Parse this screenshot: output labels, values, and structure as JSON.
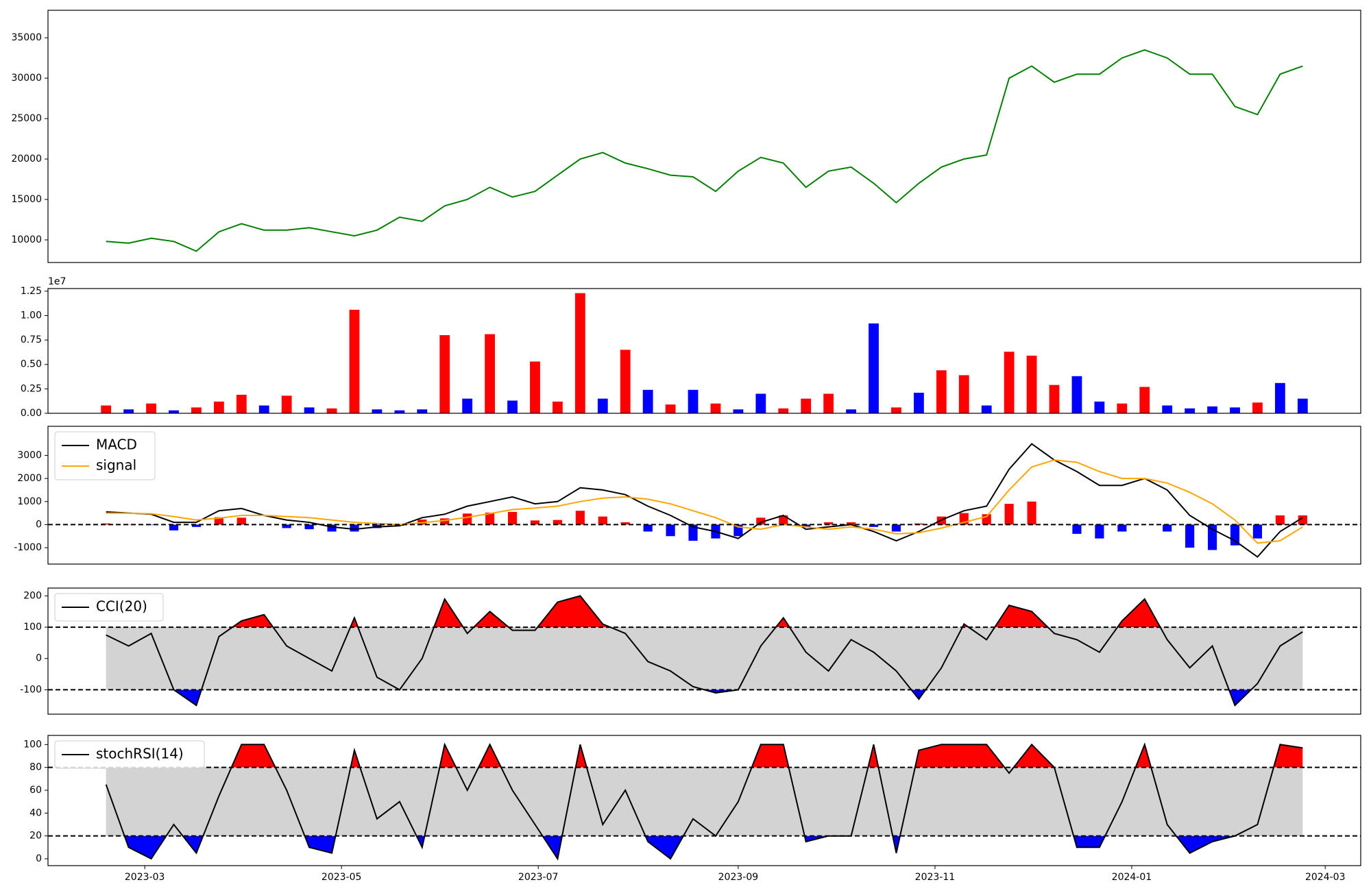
{
  "chart_data": [
    {
      "type": "line",
      "x": [
        47,
        54,
        61,
        68,
        75,
        82,
        89,
        96,
        103,
        110,
        117,
        124,
        131,
        138,
        145,
        152,
        159,
        166,
        173,
        180,
        187,
        194,
        201,
        208,
        215,
        222,
        229,
        236,
        243,
        250,
        257,
        264,
        271,
        278,
        285,
        292,
        299,
        306,
        313,
        320,
        327,
        334,
        341,
        348,
        355,
        362,
        369,
        376,
        383,
        390,
        397,
        404,
        411,
        418
      ],
      "values": [
        9800,
        9600,
        10200,
        9800,
        8600,
        11000,
        12000,
        11200,
        11200,
        11500,
        11000,
        10500,
        11200,
        12800,
        12300,
        14200,
        15000,
        16500,
        15300,
        16000,
        18000,
        20000,
        20800,
        19500,
        18800,
        18000,
        17800,
        16000,
        18500,
        20200,
        19500,
        16500,
        18500,
        19000,
        17000,
        14600,
        17000,
        19000,
        20000,
        20500,
        30000,
        31500,
        29500,
        30500,
        30500,
        32500,
        33500,
        32500,
        30500,
        30500,
        26500,
        25500,
        30500,
        31500
      ],
      "color": "#008000",
      "xlim": [
        29,
        436
      ],
      "ylim": [
        7200,
        38400
      ],
      "yticks": [
        10000,
        15000,
        20000,
        25000,
        30000,
        35000
      ]
    },
    {
      "type": "bar",
      "x": [
        47,
        54,
        61,
        68,
        75,
        82,
        89,
        96,
        103,
        110,
        117,
        124,
        131,
        138,
        145,
        152,
        159,
        166,
        173,
        180,
        187,
        194,
        201,
        208,
        215,
        222,
        229,
        236,
        243,
        250,
        257,
        264,
        271,
        278,
        285,
        292,
        299,
        306,
        313,
        320,
        327,
        334,
        341,
        348,
        355,
        362,
        369,
        376,
        383,
        390,
        397,
        404,
        411,
        418
      ],
      "values": [
        800000,
        400000,
        1000000,
        300000,
        600000,
        1200000,
        1900000,
        800000,
        1800000,
        600000,
        500000,
        10600000,
        400000,
        300000,
        400000,
        8000000,
        1500000,
        8100000,
        1300000,
        5300000,
        1200000,
        12300000,
        1500000,
        6500000,
        2400000,
        900000,
        2400000,
        1000000,
        400000,
        2000000,
        500000,
        1500000,
        2000000,
        400000,
        9200000,
        600000,
        2100000,
        4400000,
        3900000,
        800000,
        6300000,
        5900000,
        2900000,
        3800000,
        1200000,
        1000000,
        2700000,
        800000,
        500000,
        700000,
        600000,
        1100000,
        3100000,
        1500000
      ],
      "colors": [
        "red",
        "blue",
        "red",
        "blue",
        "red",
        "red",
        "red",
        "blue",
        "red",
        "blue",
        "red",
        "red",
        "blue",
        "blue",
        "blue",
        "red",
        "blue",
        "red",
        "blue",
        "red",
        "red",
        "red",
        "blue",
        "red",
        "blue",
        "red",
        "blue",
        "red",
        "blue",
        "blue",
        "red",
        "red",
        "red",
        "blue",
        "blue",
        "red",
        "blue",
        "red",
        "red",
        "blue",
        "red",
        "red",
        "red",
        "blue",
        "blue",
        "red",
        "red",
        "blue",
        "blue",
        "blue",
        "blue",
        "red",
        "blue",
        "blue"
      ],
      "xlim": [
        29,
        436
      ],
      "ylim": [
        0,
        12770000
      ],
      "y_offset_label": "1e7",
      "yticks": [
        {
          "value": 0,
          "label": "0.00"
        },
        {
          "value": 2500000,
          "label": "0.25"
        },
        {
          "value": 5000000,
          "label": "0.50"
        },
        {
          "value": 7500000,
          "label": "0.75"
        },
        {
          "value": 10000000,
          "label": "1.00"
        },
        {
          "value": 12500000,
          "label": "1.25"
        }
      ]
    },
    {
      "type": "macd",
      "x": [
        47,
        54,
        61,
        68,
        75,
        82,
        89,
        96,
        103,
        110,
        117,
        124,
        131,
        138,
        145,
        152,
        159,
        166,
        173,
        180,
        187,
        194,
        201,
        208,
        215,
        222,
        229,
        236,
        243,
        250,
        257,
        264,
        271,
        278,
        285,
        292,
        299,
        306,
        313,
        320,
        327,
        334,
        341,
        348,
        355,
        362,
        369,
        376,
        383,
        390,
        397,
        404,
        411,
        418
      ],
      "series": [
        {
          "name": "MACD",
          "color": "black",
          "values": [
            550,
            500,
            450,
            100,
            100,
            600,
            700,
            400,
            200,
            100,
            -100,
            -200,
            -100,
            -50,
            300,
            450,
            800,
            1000,
            1200,
            900,
            1000,
            1600,
            1500,
            1300,
            800,
            400,
            -100,
            -300,
            -600,
            100,
            400,
            -200,
            -100,
            0,
            -300,
            -700,
            -300,
            200,
            600,
            800,
            2400,
            3500,
            2800,
            2300,
            1700,
            1700,
            2000,
            1500,
            400,
            -200,
            -700,
            -1400,
            -300,
            300
          ]
        },
        {
          "name": "signal",
          "color": "orange",
          "values": [
            500,
            490,
            470,
            350,
            200,
            280,
            400,
            400,
            350,
            300,
            200,
            100,
            50,
            0,
            80,
            180,
            320,
            480,
            650,
            720,
            800,
            1000,
            1150,
            1200,
            1100,
            900,
            600,
            300,
            -100,
            -200,
            0,
            -100,
            -200,
            -100,
            -200,
            -400,
            -350,
            -150,
            100,
            350,
            1500,
            2500,
            2800,
            2700,
            2300,
            2000,
            2000,
            1800,
            1400,
            900,
            200,
            -800,
            -700,
            -100
          ]
        }
      ],
      "histogram": {
        "values": [
          50,
          10,
          -20,
          -250,
          -100,
          320,
          300,
          0,
          -150,
          -200,
          -300,
          -300,
          -150,
          -50,
          220,
          270,
          480,
          520,
          550,
          180,
          200,
          600,
          350,
          100,
          -300,
          -500,
          -700,
          -600,
          -500,
          300,
          400,
          -100,
          100,
          100,
          -100,
          -300,
          50,
          350,
          500,
          450,
          900,
          1000,
          0,
          -400,
          -600,
          -300,
          0,
          -300,
          -1000,
          -1100,
          -900,
          -600,
          400,
          400
        ],
        "pos_color": "red",
        "neg_color": "blue"
      },
      "thresholds": [
        0
      ],
      "legend": "upper left",
      "xlim": [
        29,
        436
      ],
      "ylim": [
        -1710,
        4260
      ],
      "yticks": [
        -1000,
        0,
        1000,
        2000,
        3000
      ]
    },
    {
      "type": "oscillator",
      "x": [
        47,
        54,
        61,
        68,
        75,
        82,
        89,
        96,
        103,
        110,
        117,
        124,
        131,
        138,
        145,
        152,
        159,
        166,
        173,
        180,
        187,
        194,
        201,
        208,
        215,
        222,
        229,
        236,
        243,
        250,
        257,
        264,
        271,
        278,
        285,
        292,
        299,
        306,
        313,
        320,
        327,
        334,
        341,
        348,
        355,
        362,
        369,
        376,
        383,
        390,
        397,
        404,
        411,
        418
      ],
      "series": [
        {
          "name": "CCI(20)",
          "color": "black",
          "values": [
            75,
            40,
            80,
            -100,
            -150,
            70,
            120,
            140,
            40,
            0,
            -40,
            130,
            -60,
            -100,
            0,
            190,
            80,
            150,
            90,
            90,
            180,
            200,
            110,
            80,
            -10,
            -40,
            -90,
            -110,
            -100,
            40,
            130,
            20,
            -40,
            60,
            20,
            -40,
            -130,
            -30,
            110,
            60,
            170,
            150,
            80,
            60,
            20,
            120,
            190,
            60,
            -30,
            40,
            -150,
            -80,
            40,
            85
          ]
        }
      ],
      "thresholds": [
        100,
        -100
      ],
      "upper_color": "red",
      "lower_color": "blue",
      "band_color": "lightgray",
      "legend": "upper left",
      "xlim": [
        29,
        436
      ],
      "ylim": [
        -178,
        225
      ],
      "yticks": [
        -100,
        0,
        100,
        200
      ]
    },
    {
      "type": "oscillator",
      "x": [
        47,
        54,
        61,
        68,
        75,
        82,
        89,
        96,
        103,
        110,
        117,
        124,
        131,
        138,
        145,
        152,
        159,
        166,
        173,
        180,
        187,
        194,
        201,
        208,
        215,
        222,
        229,
        236,
        243,
        250,
        257,
        264,
        271,
        278,
        285,
        292,
        299,
        306,
        313,
        320,
        327,
        334,
        341,
        348,
        355,
        362,
        369,
        376,
        383,
        390,
        397,
        404,
        411,
        418
      ],
      "series": [
        {
          "name": "stochRSI(14)",
          "color": "black",
          "values": [
            65,
            10,
            0,
            30,
            5,
            55,
            100,
            100,
            60,
            10,
            5,
            95,
            35,
            50,
            10,
            100,
            60,
            100,
            60,
            30,
            0,
            100,
            30,
            60,
            15,
            0,
            35,
            20,
            50,
            100,
            100,
            15,
            20,
            20,
            100,
            5,
            95,
            100,
            100,
            100,
            75,
            100,
            80,
            10,
            10,
            50,
            100,
            30,
            5,
            15,
            20,
            30,
            100,
            97
          ]
        }
      ],
      "thresholds": [
        80,
        20
      ],
      "upper_color": "red",
      "lower_color": "blue",
      "band_color": "lightgray",
      "legend": "upper left",
      "xlim": [
        29,
        436
      ],
      "ylim": [
        -6,
        108
      ],
      "yticks": [
        0,
        20,
        40,
        60,
        80,
        100
      ],
      "xticks": [
        {
          "value": 59,
          "label": "2023-03"
        },
        {
          "value": 120,
          "label": "2023-05"
        },
        {
          "value": 181,
          "label": "2023-07"
        },
        {
          "value": 243,
          "label": "2023-09"
        },
        {
          "value": 304,
          "label": "2023-11"
        },
        {
          "value": 365,
          "label": "2024-01"
        },
        {
          "value": 425,
          "label": "2024-03"
        }
      ]
    }
  ]
}
